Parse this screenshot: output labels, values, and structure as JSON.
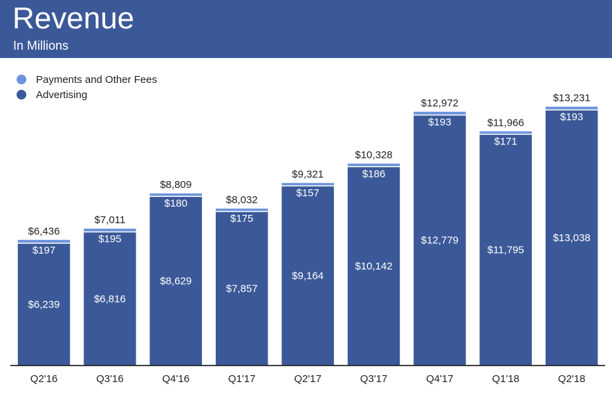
{
  "header": {
    "title": "Revenue",
    "subtitle": "In Millions",
    "background_color": "#3b5998"
  },
  "legend": {
    "items": [
      {
        "label": "Payments and Other Fees",
        "color": "#6d94dc"
      },
      {
        "label": "Advertising",
        "color": "#3b5998"
      }
    ]
  },
  "chart_data": {
    "type": "bar",
    "stacked": true,
    "categories": [
      "Q2'16",
      "Q3'16",
      "Q4'16",
      "Q1'17",
      "Q2'17",
      "Q3'17",
      "Q4'17",
      "Q1'18",
      "Q2'18"
    ],
    "series": [
      {
        "name": "Advertising",
        "color": "#3b5998",
        "values": [
          6239,
          6816,
          8629,
          7857,
          9164,
          10142,
          12779,
          11795,
          13038
        ],
        "labels": [
          "$6,239",
          "$6,816",
          "$8,629",
          "$7,857",
          "$9,164",
          "$10,142",
          "$12,779",
          "$11,795",
          "$13,038"
        ]
      },
      {
        "name": "Payments and Other Fees",
        "color": "#6d94dc",
        "values": [
          197,
          195,
          180,
          175,
          157,
          186,
          193,
          171,
          193
        ],
        "labels": [
          "$197",
          "$195",
          "$180",
          "$175",
          "$157",
          "$186",
          "$193",
          "$171",
          "$193"
        ]
      }
    ],
    "totals": [
      6436,
      7011,
      8809,
      8032,
      9321,
      10328,
      12972,
      11966,
      13231
    ],
    "total_labels": [
      "$6,436",
      "$7,011",
      "$8,809",
      "$8,032",
      "$9,321",
      "$10,328",
      "$12,972",
      "$11,966",
      "$13,231"
    ],
    "ylim": [
      0,
      14000
    ],
    "grid": false,
    "legend_position": "top-left",
    "title": "Revenue",
    "subtitle": "In Millions"
  }
}
